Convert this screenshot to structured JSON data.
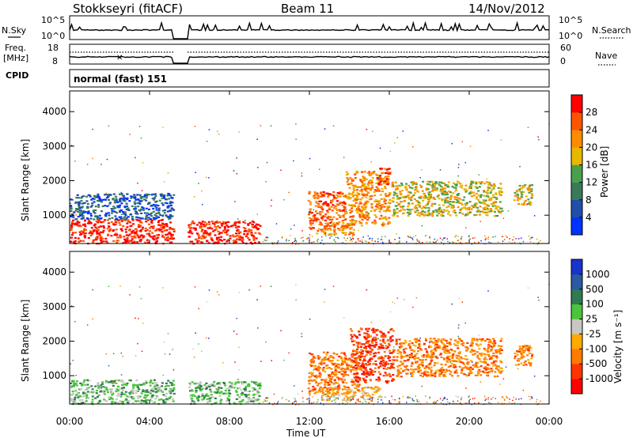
{
  "header": {
    "station": "Stokkseyri (fitACF)",
    "beam": "Beam 11",
    "date": "14/Nov/2012"
  },
  "noise_panel": {
    "left_label": "N.Sky",
    "right_label": "N.Search",
    "left_ticks": [
      {
        "base": "10",
        "exp": "^5"
      },
      {
        "base": "10",
        "exp": "^0"
      }
    ],
    "right_ticks": [
      {
        "base": "10",
        "exp": "^5"
      },
      {
        "base": "10",
        "exp": "^0"
      }
    ]
  },
  "freq_panel": {
    "left_label_1": "Freq.",
    "left_label_2": "[MHz]",
    "right_label": "Nave",
    "left_ticks": [
      "18",
      "8"
    ],
    "right_ticks": [
      "60",
      "0"
    ]
  },
  "cpid": {
    "label": "CPID",
    "value": "normal (fast) 151"
  },
  "time_axis": {
    "label": "Time UT",
    "ticks": [
      "00:00",
      "04:00",
      "08:00",
      "12:00",
      "16:00",
      "20:00",
      "00:00"
    ]
  },
  "power_panel": {
    "ylabel": "Slant Range [km]",
    "yticks": [
      "4000",
      "3000",
      "2000",
      "1000"
    ],
    "colorbar_label": "Power [dB]",
    "colorbar_ticks": [
      "28",
      "24",
      "20",
      "16",
      "12",
      "8",
      "4"
    ],
    "colors": [
      "#0033ff",
      "#1f4fa8",
      "#3a7a5a",
      "#4aa04a",
      "#e6b800",
      "#ff8c00",
      "#ff5500",
      "#ff0000"
    ]
  },
  "velocity_panel": {
    "ylabel": "Slant Range [km]",
    "yticks": [
      "4000",
      "3000",
      "2000",
      "1000"
    ],
    "colorbar_label": "Velocity [m s⁻¹]",
    "colorbar_ticks": [
      "1000",
      "500",
      "100",
      "25",
      "-25",
      "-100",
      "-500",
      "-1000"
    ],
    "colors": [
      "#1a33cc",
      "#2a5aa0",
      "#2f7a50",
      "#4cc43c",
      "#c8c8c0",
      "#ffaa00",
      "#ff7a00",
      "#ff3300",
      "#ff0000"
    ]
  },
  "chart_data": [
    {
      "type": "line",
      "title": "N.Sky / N.Search",
      "x": [
        "00:00",
        "04:00",
        "08:00",
        "12:00",
        "16:00",
        "20:00",
        "00:00"
      ],
      "series": [],
      "data_gap_hours": [
        5.2,
        5.9
      ]
    },
    {
      "type": "line",
      "title": "Freq. [MHz] / Nave",
      "ylim": [
        8,
        18
      ],
      "x": [
        "00:00",
        "04:00",
        "08:00",
        "12:00",
        "16:00",
        "20:00",
        "00:00"
      ],
      "series": []
    },
    {
      "type": "heatmap",
      "title": "Power [dB]",
      "xlabel": "Time UT",
      "ylabel": "Slant Range [km]",
      "xlim_hours": [
        0,
        24
      ],
      "ylim": [
        180,
        4600
      ],
      "colorbar_range": [
        0,
        32
      ],
      "regions": [
        {
          "t0": 0.0,
          "t1": 5.2,
          "r0": 200,
          "r1": 900,
          "level": 7
        },
        {
          "t0": 0.0,
          "t1": 5.2,
          "r0": 900,
          "r1": 1650,
          "level": 1
        },
        {
          "t0": 5.9,
          "t1": 9.5,
          "r0": 200,
          "r1": 850,
          "level": 7
        },
        {
          "t0": 11.9,
          "t1": 13.8,
          "r0": 600,
          "r1": 1700,
          "level": 6
        },
        {
          "t0": 12.3,
          "t1": 14.2,
          "r0": 450,
          "r1": 800,
          "level": 5
        },
        {
          "t0": 13.8,
          "t1": 16.0,
          "r0": 700,
          "r1": 2300,
          "level": 5
        },
        {
          "t0": 15.3,
          "t1": 16.0,
          "r0": 1900,
          "r1": 2400,
          "level": 6
        },
        {
          "t0": 16.1,
          "t1": 21.6,
          "r0": 1000,
          "r1": 2000,
          "level": 4
        },
        {
          "t0": 22.2,
          "t1": 23.1,
          "r0": 1300,
          "r1": 1900,
          "level": 4
        }
      ]
    },
    {
      "type": "heatmap",
      "title": "Velocity [m s⁻¹]",
      "xlabel": "Time UT",
      "ylabel": "Slant Range [km]",
      "xlim_hours": [
        0,
        24
      ],
      "ylim": [
        180,
        4600
      ],
      "colorbar_range": [
        -1000,
        1000
      ],
      "regions": [
        {
          "t0": 0.0,
          "t1": 5.2,
          "r0": 200,
          "r1": 900,
          "level": 3
        },
        {
          "t0": 5.9,
          "t1": 9.5,
          "r0": 200,
          "r1": 850,
          "level": 3
        },
        {
          "t0": 11.9,
          "t1": 14.5,
          "r0": 500,
          "r1": 1700,
          "level": 6
        },
        {
          "t0": 12.5,
          "t1": 15.5,
          "r0": 300,
          "r1": 700,
          "level": 5
        },
        {
          "t0": 14.0,
          "t1": 16.2,
          "r0": 800,
          "r1": 2400,
          "level": 7
        },
        {
          "t0": 16.3,
          "t1": 21.6,
          "r0": 1000,
          "r1": 2100,
          "level": 6
        },
        {
          "t0": 22.2,
          "t1": 23.1,
          "r0": 1300,
          "r1": 1900,
          "level": 6
        }
      ]
    }
  ]
}
